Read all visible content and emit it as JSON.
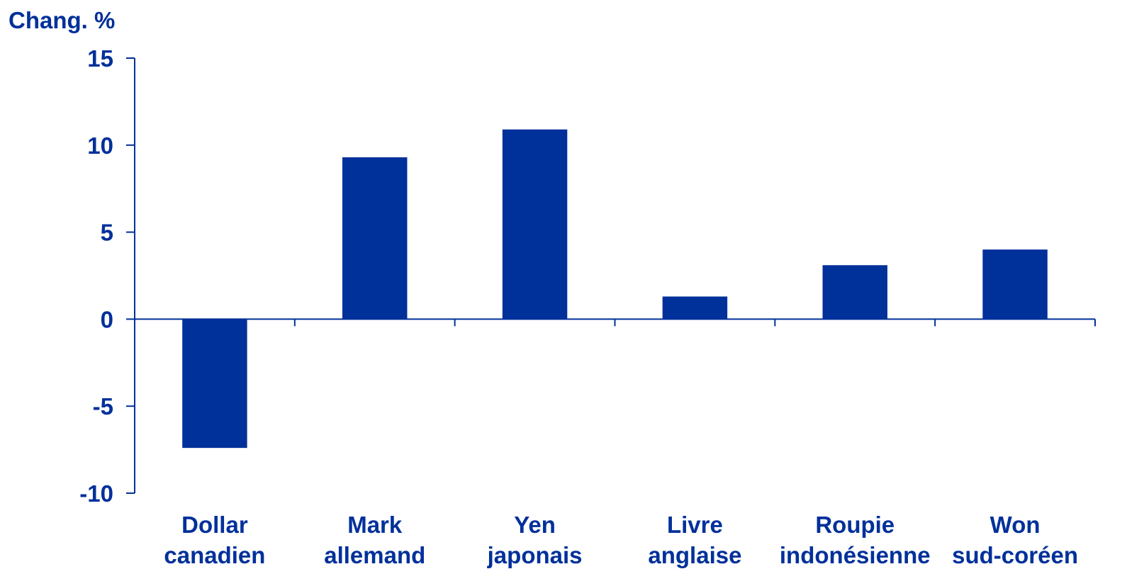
{
  "chart_data": {
    "type": "bar",
    "ylabel": "Chang. %",
    "categories": [
      [
        "Dollar",
        "canadien"
      ],
      [
        "Mark",
        "allemand"
      ],
      [
        "Yen",
        "japonais"
      ],
      [
        "Livre",
        "anglaise"
      ],
      [
        "Roupie",
        "indonésienne"
      ],
      [
        "Won",
        "sud-coréen"
      ]
    ],
    "values": [
      -7.4,
      9.3,
      10.9,
      1.3,
      3.1,
      4.0
    ],
    "ylim": [
      -10,
      15
    ],
    "yticks": [
      15,
      10,
      5,
      0,
      -5,
      -10
    ],
    "grid": false,
    "legend": "none",
    "bar_color": "#00309a",
    "axis_color": "#00309a",
    "text_color": "#00309a"
  }
}
